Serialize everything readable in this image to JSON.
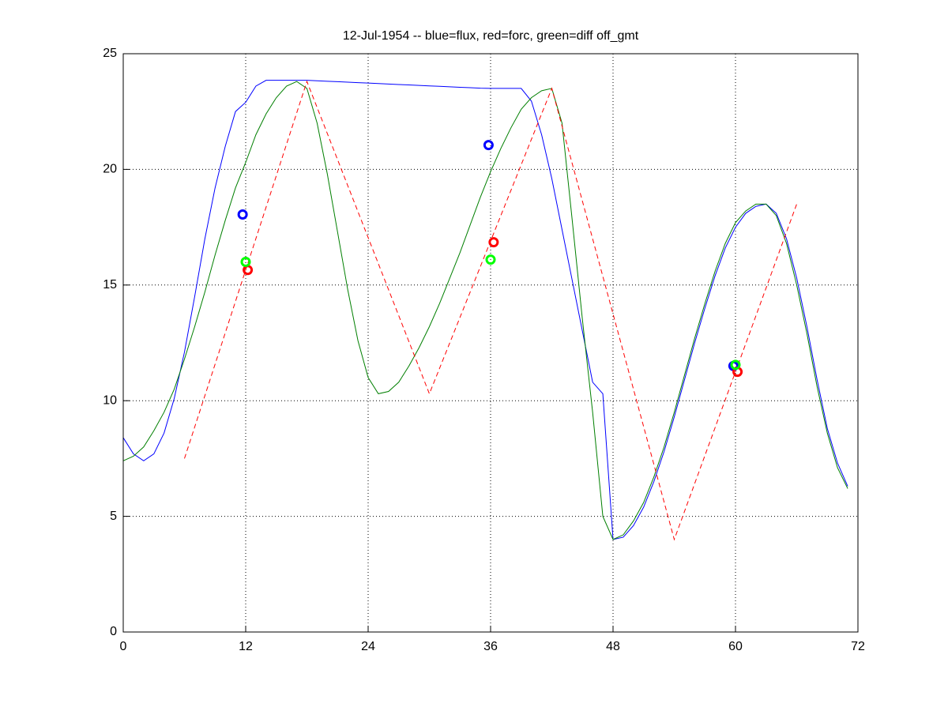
{
  "chart_data": {
    "type": "line",
    "title": "12-Jul-1954 -- blue=flux, red=forc, green=diff off_gmt",
    "xlim": [
      0,
      72
    ],
    "xticks": [
      0,
      12,
      24,
      36,
      48,
      60,
      72
    ],
    "ylim": [
      0,
      25
    ],
    "yticks": [
      0,
      5,
      10,
      15,
      20,
      25
    ],
    "grid": true,
    "series": [
      {
        "color": "#0000ff",
        "style": "solid",
        "x": [
          0,
          1,
          2,
          3,
          4,
          5,
          6,
          7,
          8,
          9,
          10,
          11,
          12,
          13,
          14,
          15,
          16,
          17,
          18,
          19,
          20,
          21,
          22,
          23,
          24,
          25,
          26,
          27,
          28,
          29,
          30,
          31,
          32,
          33,
          34,
          35,
          36,
          37,
          38,
          39,
          40,
          41,
          42,
          43,
          44,
          45,
          46,
          47,
          48,
          49,
          50,
          51,
          52,
          53,
          54,
          55,
          56,
          57,
          58,
          59,
          60,
          61,
          62,
          63,
          64,
          65,
          66,
          67,
          68,
          69,
          70,
          71
        ],
        "values": [
          8.4,
          7.7,
          7.4,
          7.7,
          8.6,
          10.1,
          12.1,
          14.5,
          17,
          19.2,
          21,
          22.5,
          22.9,
          23.6,
          23.85,
          23.85,
          23.85,
          23.85,
          23.85,
          23.83,
          23.81,
          23.79,
          23.77,
          23.75,
          23.73,
          23.71,
          23.69,
          23.67,
          23.65,
          23.63,
          23.61,
          23.59,
          23.57,
          23.55,
          23.53,
          23.51,
          23.5,
          23.5,
          23.5,
          23.5,
          22.95,
          21.5,
          19.6,
          17.4,
          15.2,
          13,
          10.8,
          10.3,
          4,
          4.1,
          4.6,
          5.4,
          6.5,
          7.8,
          9.3,
          10.9,
          12.5,
          14,
          15.4,
          16.6,
          17.5,
          18.1,
          18.4,
          18.5,
          18.1,
          17,
          15.3,
          13.2,
          10.9,
          8.8,
          7.3,
          6.3
        ]
      },
      {
        "color": "#007f00",
        "style": "solid",
        "x": [
          0,
          1,
          2,
          3,
          4,
          5,
          6,
          7,
          8,
          9,
          10,
          11,
          12,
          13,
          14,
          15,
          16,
          17,
          18,
          19,
          20,
          21,
          22,
          23,
          24,
          25,
          26,
          27,
          28,
          29,
          30,
          31,
          32,
          33,
          34,
          35,
          36,
          37,
          38,
          39,
          40,
          41,
          42,
          43,
          44,
          45,
          46,
          47,
          48,
          49,
          50,
          51,
          52,
          53,
          54,
          55,
          56,
          57,
          58,
          59,
          60,
          61,
          62,
          63,
          64,
          65,
          66,
          67,
          68,
          69,
          70,
          71
        ],
        "values": [
          7.4,
          7.6,
          8,
          8.7,
          9.5,
          10.5,
          11.8,
          13.2,
          14.7,
          16.3,
          17.8,
          19.2,
          20.3,
          21.5,
          22.4,
          23.1,
          23.6,
          23.8,
          23.5,
          22,
          19.8,
          17.3,
          14.8,
          12.6,
          11,
          10.3,
          10.4,
          10.8,
          11.5,
          12.3,
          13.2,
          14.2,
          15.3,
          16.4,
          17.6,
          18.8,
          19.9,
          20.9,
          21.8,
          22.6,
          23.1,
          23.4,
          23.5,
          22,
          17.8,
          13.5,
          9.5,
          5,
          4,
          4.2,
          4.8,
          5.6,
          6.7,
          8,
          9.5,
          11.1,
          12.7,
          14.2,
          15.6,
          16.8,
          17.7,
          18.2,
          18.5,
          18.5,
          18,
          16.8,
          15,
          12.9,
          10.6,
          8.6,
          7.1,
          6.2
        ]
      },
      {
        "color": "#ff0000",
        "style": "dashed",
        "x": [
          6,
          18,
          30,
          42,
          54,
          66
        ],
        "values": [
          7.5,
          23.8,
          10.3,
          23.5,
          4,
          18.5
        ]
      },
      {
        "color": "#0000ff",
        "style": "marker",
        "x": [
          11.7,
          35.8,
          59.8
        ],
        "values": [
          18.05,
          21.05,
          11.5
        ]
      },
      {
        "color": "#ff0000",
        "style": "marker",
        "x": [
          12.2,
          36.3,
          60.2
        ],
        "values": [
          15.65,
          16.85,
          11.25
        ]
      },
      {
        "color": "#00ff00",
        "style": "marker",
        "x": [
          12.0,
          36.0,
          60.0
        ],
        "values": [
          16.0,
          16.1,
          11.55
        ]
      }
    ]
  }
}
